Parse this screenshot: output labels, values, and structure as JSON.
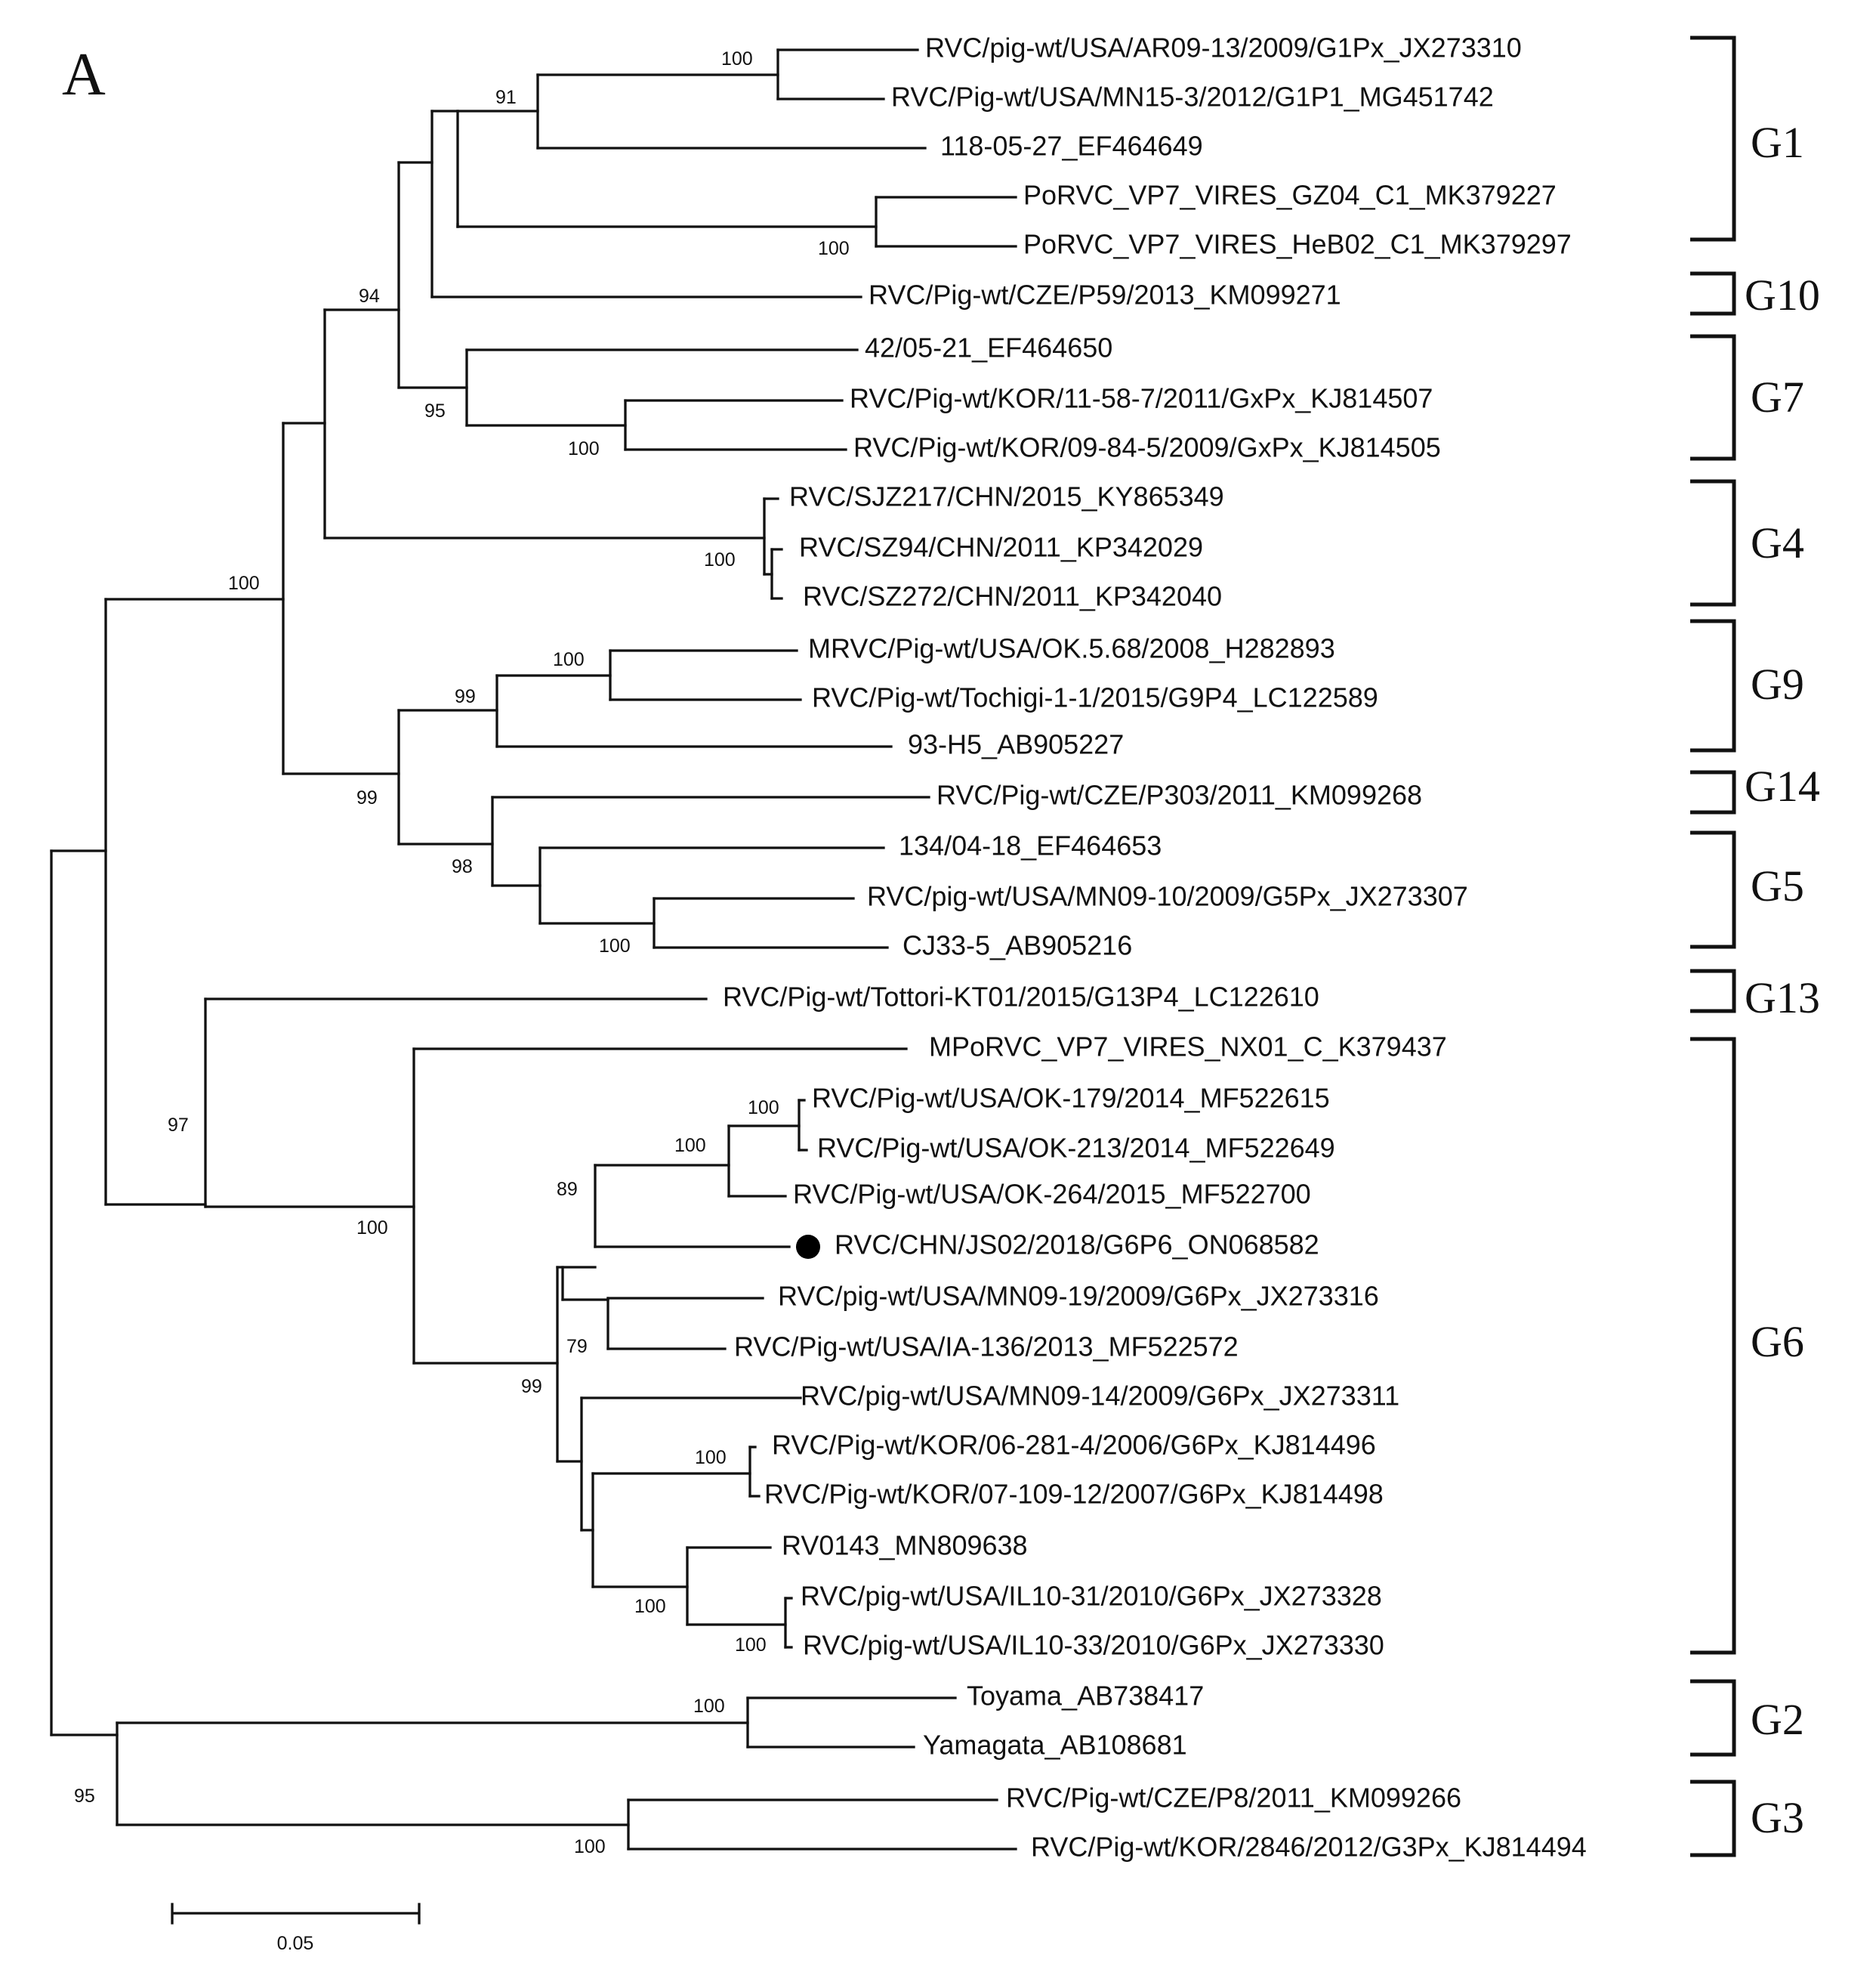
{
  "panel_label": "A",
  "scale_bar": {
    "value": 0.05,
    "label": "0.05"
  },
  "marker": "filled-circle",
  "leaves": {
    "AR09_13": "RVC/pig-wt/USA/AR09-13/2009/G1Px_JX273310",
    "MN15_3": "RVC/Pig-wt/USA/MN15-3/2012/G1P1_MG451742",
    "EF464649": "118-05-27_EF464649",
    "GZ04": "PoRVC_VP7_VIRES_GZ04_C1_MK379227",
    "HeB02": "PoRVC_VP7_VIRES_HeB02_C1_MK379297",
    "P59": "RVC/Pig-wt/CZE/P59/2013_KM099271",
    "EF464650": "42/05-21_EF464650",
    "KJ814507": "RVC/Pig-wt/KOR/11-58-7/2011/GxPx_KJ814507",
    "KJ814505": "RVC/Pig-wt/KOR/09-84-5/2009/GxPx_KJ814505",
    "SJZ217": "RVC/SJZ217/CHN/2015_KY865349",
    "SZ94": "RVC/SZ94/CHN/2011_KP342029",
    "SZ272": "RVC/SZ272/CHN/2011_KP342040",
    "OK568": "MRVC/Pig-wt/USA/OK.5.68/2008_H282893",
    "Tochigi": "RVC/Pig-wt/Tochigi-1-1/2015/G9P4_LC122589",
    "H5": "93-H5_AB905227",
    "P303": "RVC/Pig-wt/CZE/P303/2011_KM099268",
    "EF464653": "134/04-18_EF464653",
    "MN09_10": "RVC/pig-wt/USA/MN09-10/2009/G5Px_JX273307",
    "CJ33": "CJ33-5_AB905216",
    "Tottori": "RVC/Pig-wt/Tottori-KT01/2015/G13P4_LC122610",
    "NX01": "MPoRVC_VP7_VIRES_NX01_C_K379437",
    "OK179": "RVC/Pig-wt/USA/OK-179/2014_MF522615",
    "OK213": "RVC/Pig-wt/USA/OK-213/2014_MF522649",
    "OK264": "RVC/Pig-wt/USA/OK-264/2015_MF522700",
    "JS02": "RVC/CHN/JS02/2018/G6P6_ON068582",
    "MN09_19": "RVC/pig-wt/USA/MN09-19/2009/G6Px_JX273316",
    "IA136": "RVC/Pig-wt/USA/IA-136/2013_MF522572",
    "MN09_14": "RVC/pig-wt/USA/MN09-14/2009/G6Px_JX273311",
    "KOR06": "RVC/Pig-wt/KOR/06-281-4/2006/G6Px_KJ814496",
    "KOR07": "RVC/Pig-wt/KOR/07-109-12/2007/G6Px_KJ814498",
    "RV0143": "RV0143_MN809638",
    "IL10_31": "RVC/pig-wt/USA/IL10-31/2010/G6Px_JX273328",
    "IL10_33": "RVC/pig-wt/USA/IL10-33/2010/G6Px_JX273330",
    "Toyama": "Toyama_AB738417",
    "Yamagata": "Yamagata_AB108681",
    "P8": "RVC/Pig-wt/CZE/P8/2011_KM099266",
    "KOR2846": "RVC/Pig-wt/KOR/2846/2012/G3Px_KJ814494"
  },
  "bootstrap": {
    "n1": "100",
    "n2": "91",
    "n3": "100",
    "n4": "94",
    "n5": "95",
    "n6": "100",
    "n7": "100",
    "n8": "100",
    "n9": "100",
    "n10": "99",
    "n11": "99",
    "n12": "98",
    "n13": "100",
    "n14": "97",
    "n15": "100",
    "n16": "100",
    "n17": "100",
    "n18": "89",
    "n19": "79",
    "n20": "99",
    "n21": "100",
    "n22": "100",
    "n23": "100",
    "n24": "100",
    "n25": "100",
    "n26": "95"
  },
  "groups": {
    "G1": "G1",
    "G10": "G10",
    "G7": "G7",
    "G4": "G4",
    "G9": "G9",
    "G14": "G14",
    "G5": "G5",
    "G13": "G13",
    "G6": "G6",
    "G2": "G2",
    "G3": "G3"
  }
}
